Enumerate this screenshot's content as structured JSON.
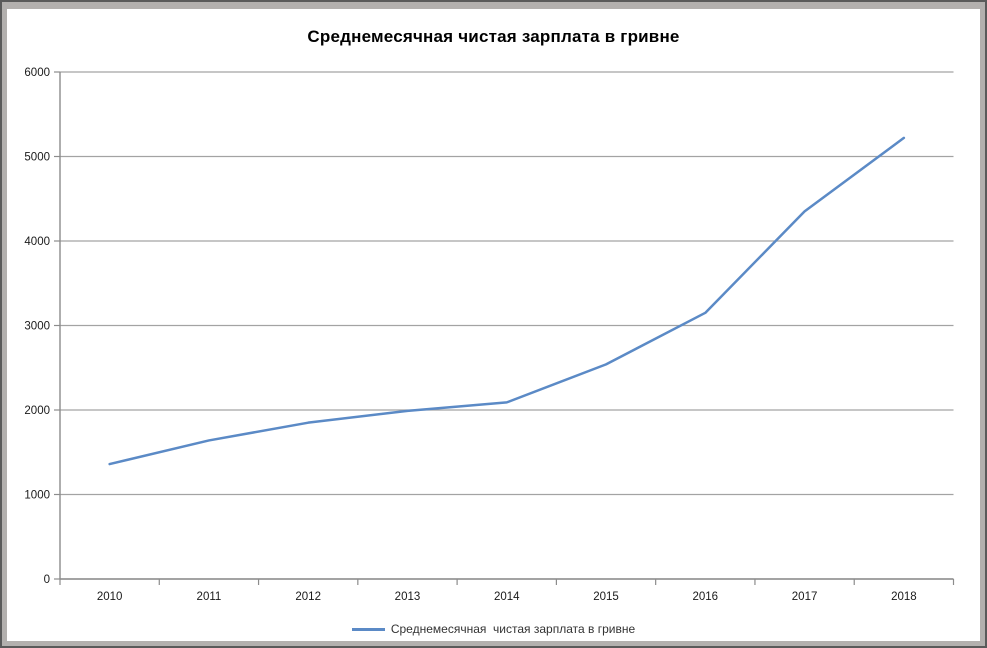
{
  "chart_data": {
    "type": "line",
    "title": "Среднемесячная чистая зарплата в гривне",
    "categories": [
      "2010",
      "2011",
      "2012",
      "2013",
      "2014",
      "2015",
      "2016",
      "2017",
      "2018"
    ],
    "series": [
      {
        "name": "Среднемесячная  чистая зарплата в гривне",
        "values": [
          1360,
          1640,
          1850,
          1990,
          2090,
          2540,
          3150,
          4350,
          5220
        ],
        "color": "#5b8ac6"
      }
    ],
    "xlabel": "",
    "ylabel": "",
    "ylim": [
      0,
      6000
    ],
    "yticks": [
      0,
      1000,
      2000,
      3000,
      4000,
      5000,
      6000
    ],
    "grid": "horizontal",
    "legend_position": "bottom",
    "grid_color": "#a3a3a3",
    "axis_color": "#8c8c8c",
    "tick_label_color": "#1a1a1a"
  }
}
